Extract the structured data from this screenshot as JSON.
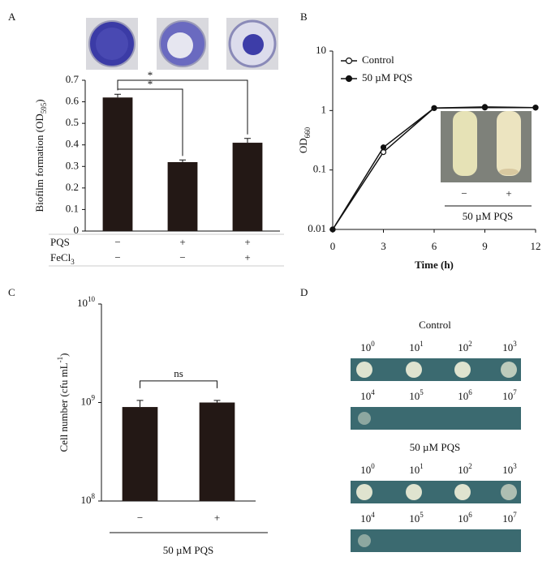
{
  "panel_labels": [
    "A",
    "B",
    "C",
    "D"
  ],
  "chart_data": [
    {
      "type": "bar",
      "ylabel": [
        "Biofilm formation (OD",
        "595",
        ")"
      ],
      "values": [
        0.62,
        0.32,
        0.41
      ],
      "errors": [
        0.015,
        0.01,
        0.02
      ],
      "color": "#231815",
      "ylim": [
        0,
        0.7
      ],
      "yticks": [
        0,
        0.1,
        0.2,
        0.3,
        0.4,
        0.5,
        0.6,
        0.7
      ],
      "conditions": [
        {
          "name": [
            "PQS"
          ],
          "values": [
            "−",
            "+",
            "+"
          ]
        },
        {
          "name": [
            "FeCl",
            "3"
          ],
          "values": [
            "−",
            "−",
            "+"
          ]
        }
      ],
      "significance_labels": [
        "*",
        "*"
      ]
    },
    {
      "type": "line",
      "x": [
        0,
        3,
        6,
        9,
        12
      ],
      "series": [
        {
          "name": "Control",
          "color": "#111111",
          "fill": "#ffffff",
          "values": [
            0.01,
            0.2,
            1.1,
            1.15,
            1.12
          ]
        },
        {
          "name": "50 µM PQS",
          "color": "#111111",
          "fill": "#111111",
          "values": [
            0.01,
            0.24,
            1.1,
            1.12,
            1.12
          ]
        }
      ],
      "xlim": [
        0,
        12
      ],
      "xticks": [
        0,
        3,
        6,
        9,
        12
      ],
      "ylim": [
        0.01,
        10
      ],
      "yticks": [
        0.01,
        0.1,
        1,
        10
      ],
      "log_y": true,
      "xlabel": "Time (h)",
      "ylabel": [
        "OD",
        "660"
      ],
      "legend": "upper left",
      "inset": {
        "labels": [
          "−",
          "+"
        ],
        "caption": "50 µM PQS"
      }
    },
    {
      "type": "bar",
      "ylabel": [
        "Cell number (cfu mL",
        "-1",
        ")"
      ],
      "categories": [
        "−",
        "+"
      ],
      "values": [
        900000000,
        1000000000
      ],
      "errors": [
        150000000,
        50000000
      ],
      "color": "#231815",
      "ylim": [
        100000000,
        10000000000
      ],
      "log_y": true,
      "yticks": [
        {
          "value": 100000000,
          "label": "10",
          "exponent": "8"
        },
        {
          "value": 1000000000,
          "label": "10",
          "exponent": "9"
        },
        {
          "value": 10000000000,
          "label": "10",
          "exponent": "10"
        }
      ],
      "group_label": "50 µM PQS",
      "significance": "ns"
    }
  ],
  "panel_d": {
    "base": "10",
    "sections": [
      {
        "title": "Control",
        "rows": [
          [
            "0",
            "1",
            "2",
            "3"
          ],
          [
            "4",
            "5",
            "6",
            "7"
          ]
        ]
      },
      {
        "title": "50 µM PQS",
        "rows": [
          [
            "0",
            "1",
            "2",
            "3"
          ],
          [
            "4",
            "5",
            "6",
            "7"
          ]
        ]
      }
    ]
  }
}
